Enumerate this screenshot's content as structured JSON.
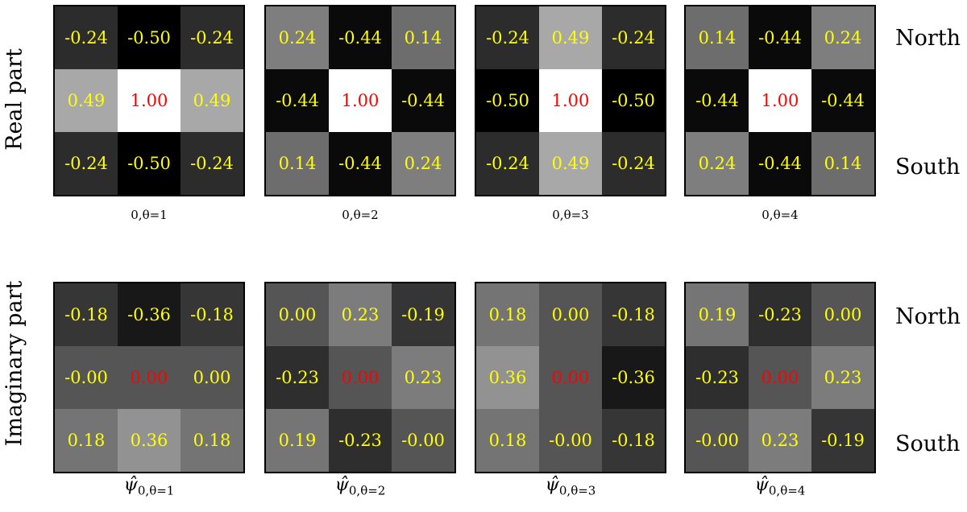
{
  "chart_data": {
    "type": "heatmap",
    "colormap": "gray",
    "vlim": [
      -0.5,
      1.0
    ],
    "text_color": "#ffff00",
    "center_text_color": "#ff0000",
    "row_labels": [
      "Real part",
      "Imaginary part"
    ],
    "side_labels": {
      "top": "North",
      "bottom": "South"
    },
    "rows": [
      {
        "name": "Real part",
        "panels": [
          {
            "title": "0,θ=1",
            "values": [
              [
                -0.24,
                -0.5,
                -0.24
              ],
              [
                0.49,
                1.0,
                0.49
              ],
              [
                -0.24,
                -0.5,
                -0.24
              ]
            ]
          },
          {
            "title": "0,θ=2",
            "values": [
              [
                0.24,
                -0.44,
                0.14
              ],
              [
                -0.44,
                1.0,
                -0.44
              ],
              [
                0.14,
                -0.44,
                0.24
              ]
            ]
          },
          {
            "title": "0,θ=3",
            "values": [
              [
                -0.24,
                0.49,
                -0.24
              ],
              [
                -0.5,
                1.0,
                -0.5
              ],
              [
                -0.24,
                0.49,
                -0.24
              ]
            ]
          },
          {
            "title": "0,θ=4",
            "values": [
              [
                0.14,
                -0.44,
                0.24
              ],
              [
                -0.44,
                1.0,
                -0.44
              ],
              [
                0.24,
                -0.44,
                0.14
              ]
            ]
          }
        ]
      },
      {
        "name": "Imaginary part",
        "panels": [
          {
            "title": "ψ̂",
            "subscript": "0,θ=1",
            "values": [
              [
                "-0.18",
                "-0.36",
                "-0.18"
              ],
              [
                "-0.00",
                "0.00",
                "0.00"
              ],
              [
                "0.18",
                "0.36",
                "0.18"
              ]
            ]
          },
          {
            "title": "ψ̂",
            "subscript": "0,θ=2",
            "values": [
              [
                "0.00",
                "0.23",
                "-0.19"
              ],
              [
                "-0.23",
                "0.00",
                "0.23"
              ],
              [
                "0.19",
                "-0.23",
                "-0.00"
              ]
            ]
          },
          {
            "title": "ψ̂",
            "subscript": "0,θ=3",
            "values": [
              [
                "0.18",
                "0.00",
                "-0.18"
              ],
              [
                "0.36",
                "0.00",
                "-0.36"
              ],
              [
                "0.18",
                "-0.00",
                "-0.18"
              ]
            ]
          },
          {
            "title": "ψ̂",
            "subscript": "0,θ=4",
            "values": [
              [
                "0.19",
                "-0.23",
                "0.00"
              ],
              [
                "-0.23",
                "0.00",
                "0.23"
              ],
              [
                "-0.00",
                "0.23",
                "-0.19"
              ]
            ]
          }
        ]
      }
    ]
  }
}
